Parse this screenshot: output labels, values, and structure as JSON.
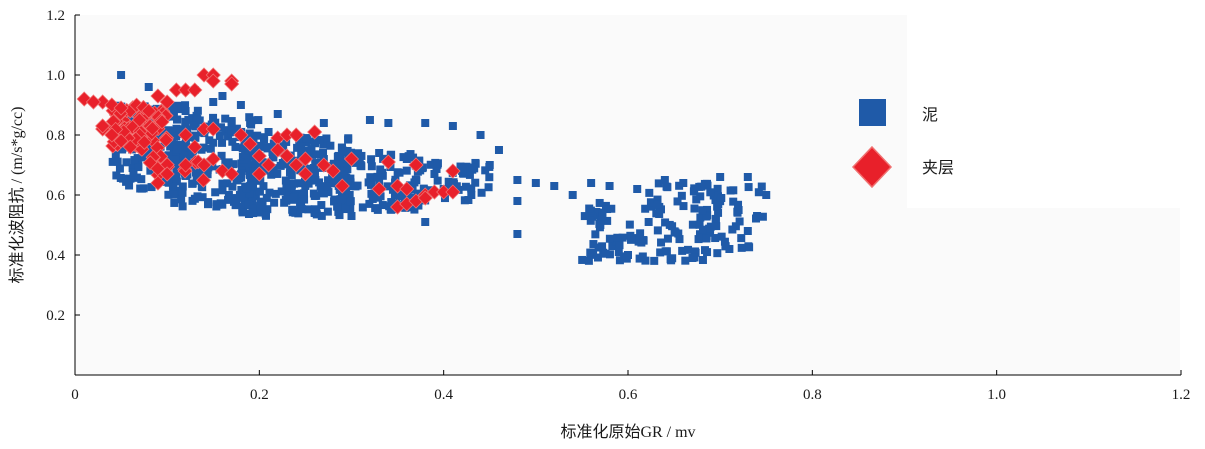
{
  "chart_data": {
    "type": "scatter",
    "xlabel": "标准化原始GR / mv",
    "ylabel": "标准化波阻抗 / (m/s*g/cc)",
    "xlim": [
      0,
      1.2
    ],
    "ylim": [
      0,
      1.2
    ],
    "xticks": [
      "0",
      "0.2",
      "0.4",
      "0.6",
      "0.8",
      "1.0",
      "1.2"
    ],
    "yticks": [
      "0.2",
      "0.4",
      "0.6",
      "0.8",
      "1.0",
      "1.2"
    ],
    "legend_position": "right",
    "series": [
      {
        "name": "泥",
        "marker": "square",
        "color": "#1f5aa8",
        "clusters": [
          {
            "x": [
              0.04,
              0.14
            ],
            "y": [
              0.62,
              0.9
            ],
            "count": 160
          },
          {
            "x": [
              0.1,
              0.2
            ],
            "y": [
              0.56,
              0.86
            ],
            "count": 170
          },
          {
            "x": [
              0.18,
              0.3
            ],
            "y": [
              0.53,
              0.8
            ],
            "count": 230
          },
          {
            "x": [
              0.28,
              0.38
            ],
            "y": [
              0.55,
              0.74
            ],
            "count": 130
          },
          {
            "x": [
              0.36,
              0.45
            ],
            "y": [
              0.58,
              0.72
            ],
            "count": 45
          },
          {
            "x": [
              0.55,
              0.62
            ],
            "y": [
              0.38,
              0.58
            ],
            "count": 55
          },
          {
            "x": [
              0.62,
              0.7
            ],
            "y": [
              0.38,
              0.64
            ],
            "count": 70
          },
          {
            "x": [
              0.68,
              0.75
            ],
            "y": [
              0.42,
              0.64
            ],
            "count": 35
          }
        ],
        "points": [
          [
            0.05,
            1.0
          ],
          [
            0.08,
            0.96
          ],
          [
            0.13,
            0.95
          ],
          [
            0.16,
            0.93
          ],
          [
            0.18,
            0.9
          ],
          [
            0.22,
            0.87
          ],
          [
            0.27,
            0.84
          ],
          [
            0.32,
            0.85
          ],
          [
            0.34,
            0.84
          ],
          [
            0.38,
            0.84
          ],
          [
            0.41,
            0.83
          ],
          [
            0.44,
            0.8
          ],
          [
            0.46,
            0.75
          ],
          [
            0.45,
            0.7
          ],
          [
            0.48,
            0.65
          ],
          [
            0.5,
            0.64
          ],
          [
            0.52,
            0.63
          ],
          [
            0.48,
            0.58
          ],
          [
            0.54,
            0.6
          ],
          [
            0.48,
            0.47
          ],
          [
            0.56,
            0.64
          ],
          [
            0.58,
            0.63
          ],
          [
            0.61,
            0.62
          ],
          [
            0.64,
            0.65
          ],
          [
            0.66,
            0.64
          ],
          [
            0.7,
            0.66
          ],
          [
            0.73,
            0.66
          ],
          [
            0.75,
            0.6
          ],
          [
            0.43,
            0.6
          ],
          [
            0.4,
            0.62
          ],
          [
            0.38,
            0.51
          ],
          [
            0.3,
            0.53
          ],
          [
            0.26,
            0.54
          ],
          [
            0.29,
            0.75
          ],
          [
            0.33,
            0.74
          ],
          [
            0.21,
            0.81
          ],
          [
            0.19,
            0.84
          ],
          [
            0.15,
            0.91
          ],
          [
            0.12,
            0.88
          ],
          [
            0.23,
            0.8
          ],
          [
            0.36,
            0.72
          ],
          [
            0.31,
            0.7
          ],
          [
            0.27,
            0.72
          ],
          [
            0.39,
            0.67
          ],
          [
            0.42,
            0.68
          ],
          [
            0.6,
            0.4
          ],
          [
            0.59,
            0.41
          ],
          [
            0.67,
            0.39
          ],
          [
            0.71,
            0.42
          ],
          [
            0.57,
            0.5
          ],
          [
            0.72,
            0.55
          ],
          [
            0.73,
            0.48
          ],
          [
            0.74,
            0.53
          ]
        ]
      },
      {
        "name": "夹层",
        "marker": "diamond",
        "color": "#e8202a",
        "stroke": "#f07070",
        "clusters": [
          {
            "x": [
              0.04,
              0.1
            ],
            "y": [
              0.75,
              0.9
            ],
            "count": 70
          },
          {
            "x": [
              0.08,
              0.14
            ],
            "y": [
              0.64,
              0.74
            ],
            "count": 14
          }
        ],
        "points": [
          [
            0.01,
            0.92
          ],
          [
            0.03,
            0.91
          ],
          [
            0.02,
            0.91
          ],
          [
            0.04,
            0.9
          ],
          [
            0.05,
            0.89
          ],
          [
            0.03,
            0.82
          ],
          [
            0.04,
            0.8
          ],
          [
            0.03,
            0.83
          ],
          [
            0.05,
            0.78
          ],
          [
            0.06,
            0.76
          ],
          [
            0.07,
            0.85
          ],
          [
            0.08,
            0.88
          ],
          [
            0.1,
            0.91
          ],
          [
            0.09,
            0.93
          ],
          [
            0.11,
            0.95
          ],
          [
            0.12,
            0.95
          ],
          [
            0.13,
            0.95
          ],
          [
            0.14,
            1.0
          ],
          [
            0.15,
            1.0
          ],
          [
            0.15,
            0.98
          ],
          [
            0.17,
            0.98
          ],
          [
            0.17,
            0.97
          ],
          [
            0.14,
            0.82
          ],
          [
            0.15,
            0.82
          ],
          [
            0.12,
            0.8
          ],
          [
            0.13,
            0.76
          ],
          [
            0.12,
            0.7
          ],
          [
            0.14,
            0.7
          ],
          [
            0.15,
            0.72
          ],
          [
            0.16,
            0.68
          ],
          [
            0.17,
            0.67
          ],
          [
            0.18,
            0.8
          ],
          [
            0.19,
            0.77
          ],
          [
            0.2,
            0.73
          ],
          [
            0.21,
            0.7
          ],
          [
            0.22,
            0.79
          ],
          [
            0.23,
            0.8
          ],
          [
            0.24,
            0.8
          ],
          [
            0.22,
            0.75
          ],
          [
            0.23,
            0.73
          ],
          [
            0.25,
            0.72
          ],
          [
            0.24,
            0.7
          ],
          [
            0.25,
            0.67
          ],
          [
            0.26,
            0.81
          ],
          [
            0.27,
            0.7
          ],
          [
            0.28,
            0.68
          ],
          [
            0.29,
            0.63
          ],
          [
            0.3,
            0.72
          ],
          [
            0.33,
            0.62
          ],
          [
            0.34,
            0.71
          ],
          [
            0.35,
            0.63
          ],
          [
            0.36,
            0.62
          ],
          [
            0.37,
            0.7
          ],
          [
            0.35,
            0.56
          ],
          [
            0.36,
            0.57
          ],
          [
            0.37,
            0.58
          ],
          [
            0.38,
            0.6
          ],
          [
            0.39,
            0.61
          ],
          [
            0.4,
            0.61
          ],
          [
            0.41,
            0.61
          ],
          [
            0.41,
            0.68
          ],
          [
            0.38,
            0.59
          ],
          [
            0.2,
            0.67
          ],
          [
            0.1,
            0.67
          ],
          [
            0.09,
            0.64
          ]
        ]
      }
    ]
  }
}
